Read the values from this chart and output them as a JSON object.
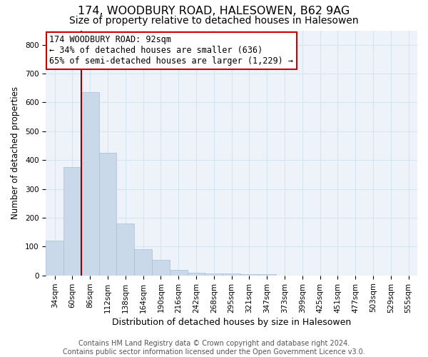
{
  "title1": "174, WOODBURY ROAD, HALESOWEN, B62 9AG",
  "title2": "Size of property relative to detached houses in Halesowen",
  "xlabel": "Distribution of detached houses by size in Halesowen",
  "ylabel": "Number of detached properties",
  "bar_labels": [
    "34sqm",
    "60sqm",
    "86sqm",
    "112sqm",
    "138sqm",
    "164sqm",
    "190sqm",
    "216sqm",
    "242sqm",
    "268sqm",
    "295sqm",
    "321sqm",
    "347sqm",
    "373sqm",
    "399sqm",
    "425sqm",
    "451sqm",
    "477sqm",
    "503sqm",
    "529sqm",
    "555sqm"
  ],
  "bar_values": [
    120,
    375,
    635,
    425,
    180,
    90,
    55,
    20,
    10,
    7,
    7,
    5,
    5,
    0,
    0,
    0,
    0,
    0,
    0,
    0,
    0
  ],
  "bar_color": "#c9d9ea",
  "bar_edge_color": "#aabfd4",
  "highlight_line_color": "#990000",
  "annotation_text": "174 WOODBURY ROAD: 92sqm\n← 34% of detached houses are smaller (636)\n65% of semi-detached houses are larger (1,229) →",
  "annotation_box_color": "#ffffff",
  "annotation_box_edge": "#cc0000",
  "ylim": [
    0,
    850
  ],
  "yticks": [
    0,
    100,
    200,
    300,
    400,
    500,
    600,
    700,
    800
  ],
  "grid_color": "#d5e5f0",
  "bg_color": "#edf3f9",
  "footer": "Contains HM Land Registry data © Crown copyright and database right 2024.\nContains public sector information licensed under the Open Government Licence v3.0.",
  "title1_fontsize": 11.5,
  "title2_fontsize": 10,
  "xlabel_fontsize": 9,
  "ylabel_fontsize": 8.5,
  "tick_fontsize": 7.5,
  "annotation_fontsize": 8.5,
  "footer_fontsize": 7
}
